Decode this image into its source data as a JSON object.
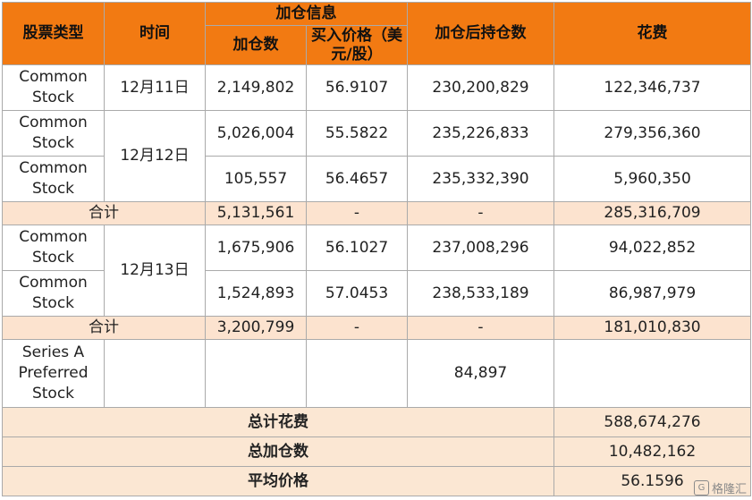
{
  "header": {
    "stock_type": "股票类型",
    "time": "时间",
    "add_info": "加仓信息",
    "add_shares": "加仓数",
    "buy_price": "买入价格（美元/股）",
    "holdings_after": "加仓后持仓数",
    "cost": "花费"
  },
  "rows": [
    {
      "type": "Common Stock",
      "date": "12月11日",
      "shares": "2,149,802",
      "price": "56.9107",
      "holdings": "230,200,829",
      "cost": "122,346,737"
    },
    {
      "type": "Common Stock",
      "date": "12月12日",
      "shares": "5,026,004",
      "price": "55.5822",
      "holdings": "235,226,833",
      "cost": "279,356,360"
    },
    {
      "type": "Common Stock",
      "shares": "105,557",
      "price": "56.4657",
      "holdings": "235,332,390",
      "cost": "5,960,350"
    },
    {
      "label": "合计",
      "shares": "5,131,561",
      "price": "-",
      "holdings": "-",
      "cost": "285,316,709"
    },
    {
      "type": "Common Stock",
      "date": "12月13日",
      "shares": "1,675,906",
      "price": "56.1027",
      "holdings": "237,008,296",
      "cost": "94,022,852"
    },
    {
      "type": "Common Stock",
      "shares": "1,524,893",
      "price": "57.0453",
      "holdings": "238,533,189",
      "cost": "86,987,979"
    },
    {
      "label": "合计",
      "shares": "3,200,799",
      "price": "-",
      "holdings": "-",
      "cost": "181,010,830"
    },
    {
      "type": "Series A Preferred Stock",
      "shares": "",
      "price": "",
      "holdings": "84,897",
      "cost": ""
    }
  ],
  "totals": [
    {
      "label": "总计花费",
      "value": "588,674,276"
    },
    {
      "label": "总加仓数",
      "value": "10,482,162"
    },
    {
      "label": "平均价格",
      "value": "56.1596"
    }
  ],
  "watermark": {
    "icon": "gelonghui-logo-icon",
    "text": "格隆汇"
  }
}
